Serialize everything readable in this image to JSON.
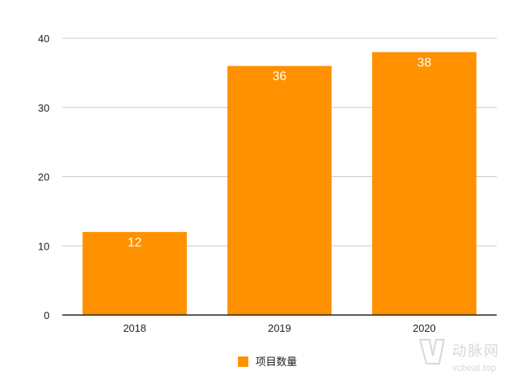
{
  "chart_data": {
    "type": "bar",
    "categories": [
      "2018",
      "2019",
      "2020"
    ],
    "series": [
      {
        "name": "项目数量",
        "values": [
          12,
          36,
          38
        ],
        "color": "#FF9100"
      }
    ],
    "data_labels": [
      "12",
      "36",
      "38"
    ],
    "y_ticks": [
      "0",
      "10",
      "20",
      "30",
      "40"
    ],
    "ylim": [
      0,
      40
    ],
    "grid": true,
    "legend_position": "bottom"
  },
  "watermark": {
    "brand": "动脉网",
    "url": "vcbeat.top"
  },
  "colors": {
    "bar": "#FF9100",
    "grid": "#c8c8c8",
    "axis": "#222222",
    "tick_text": "#222222",
    "data_label": "#ffffff",
    "watermark": "#d2d2d2"
  }
}
